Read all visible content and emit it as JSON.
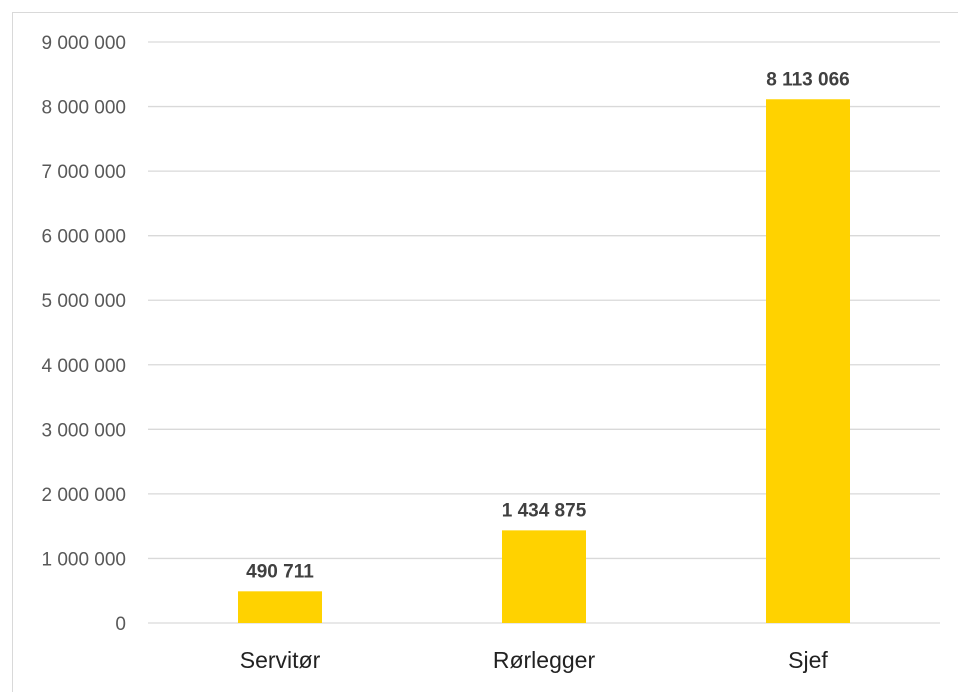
{
  "chart_data": {
    "type": "bar",
    "categories": [
      "Servitør",
      "Rørlegger",
      "Sjef"
    ],
    "values": [
      490711,
      1434875,
      8113066
    ],
    "data_labels": [
      "490 711",
      "1 434 875",
      "8 113 066"
    ],
    "title": "",
    "xlabel": "",
    "ylabel": "",
    "ylim": [
      0,
      9000000
    ],
    "y_ticks": [
      0,
      1000000,
      2000000,
      3000000,
      4000000,
      5000000,
      6000000,
      7000000,
      8000000,
      9000000
    ],
    "y_tick_labels": [
      "0",
      "1 000 000",
      "2 000 000",
      "3 000 000",
      "4 000 000",
      "5 000 000",
      "6 000 000",
      "7 000 000",
      "8 000 000",
      "9 000 000"
    ],
    "grid": true,
    "legend": "none",
    "colors": {
      "bar": "#FFD200",
      "grid": "#d9d9d9",
      "tick_text": "#595959",
      "category_text": "#222222",
      "data_label_text": "#404040"
    }
  }
}
